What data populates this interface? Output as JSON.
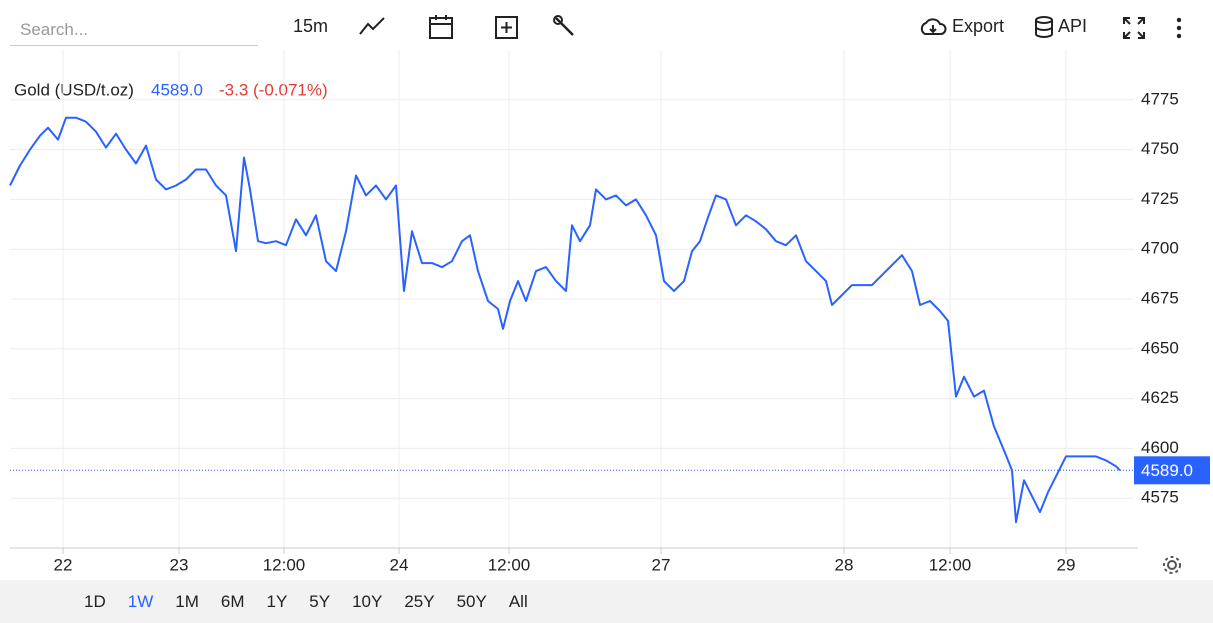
{
  "toolbar": {
    "search_placeholder": "Search...",
    "interval": "15m",
    "export": "Export",
    "api": "API"
  },
  "ranges": {
    "items": [
      "1D",
      "1W",
      "1M",
      "6M",
      "1Y",
      "5Y",
      "10Y",
      "25Y",
      "50Y",
      "All"
    ],
    "selected": "1W"
  },
  "chart_data": {
    "type": "line",
    "title": "Gold (USD/t.oz)",
    "current_price": {
      "value": 4589.0,
      "label": "4589.0"
    },
    "change": "-3.3 (-0.071%)",
    "series": [
      {
        "name": "Gold",
        "color": "#2962ff",
        "x": [
          0,
          10,
          20,
          30,
          38,
          48,
          56,
          66,
          76,
          86,
          96,
          106,
          116,
          126,
          136,
          146,
          156,
          166,
          176,
          186,
          196,
          206,
          216,
          226,
          234,
          240,
          248,
          256,
          266,
          276,
          286,
          296,
          306,
          316,
          326,
          336,
          346,
          356,
          366,
          376,
          386,
          394,
          402,
          412,
          422,
          432,
          442,
          452,
          460,
          468,
          478,
          488,
          493,
          500,
          508,
          516,
          526,
          536,
          546,
          556,
          562,
          570,
          580,
          586,
          596,
          606,
          616,
          626,
          636,
          646,
          654,
          664,
          674,
          682,
          690,
          698,
          706,
          716,
          726,
          736,
          746,
          756,
          766,
          776,
          786,
          796,
          806,
          816,
          822,
          832,
          842,
          852,
          862,
          872,
          882,
          892,
          902,
          910,
          920,
          930,
          938,
          946,
          954,
          964,
          974,
          984,
          994,
          1002,
          1006,
          1014,
          1022,
          1030,
          1038,
          1046,
          1056,
          1066,
          1076,
          1086,
          1096,
          1106,
          1110
        ],
        "values": [
          4732,
          4742,
          4750,
          4757,
          4761,
          4755,
          4766,
          4766,
          4764,
          4759,
          4751,
          4758,
          4750,
          4743,
          4752,
          4735,
          4730,
          4732,
          4735,
          4740,
          4740,
          4732,
          4727,
          4699,
          4746,
          4730,
          4704,
          4703,
          4704,
          4702,
          4715,
          4707,
          4717,
          4694,
          4689,
          4709,
          4737,
          4727,
          4732,
          4725,
          4732,
          4679,
          4709,
          4693,
          4693,
          4691,
          4694,
          4704,
          4707,
          4689,
          4674,
          4670,
          4660,
          4674,
          4684,
          4674,
          4689,
          4691,
          4684,
          4679,
          4712,
          4704,
          4712,
          4730,
          4725,
          4727,
          4722,
          4725,
          4717,
          4707,
          4684,
          4679,
          4684,
          4699,
          4704,
          4716,
          4727,
          4725,
          4712,
          4717,
          4714,
          4710,
          4704,
          4702,
          4707,
          4694,
          4689,
          4684,
          4672,
          4677,
          4682,
          4682,
          4682,
          4687,
          4692,
          4697,
          4689,
          4672,
          4674,
          4669,
          4664,
          4626,
          4636,
          4626,
          4629,
          4611,
          4599,
          4589,
          4563,
          4584,
          4576,
          4568,
          4578,
          4586,
          4596,
          4596,
          4596,
          4596,
          4594,
          4591,
          4589
        ]
      }
    ],
    "xlim": [
      0,
      1123
    ],
    "xticks": [
      {
        "value": 53,
        "label": "22"
      },
      {
        "value": 169,
        "label": "23"
      },
      {
        "value": 274,
        "label": "12:00"
      },
      {
        "value": 389,
        "label": "24"
      },
      {
        "value": 499,
        "label": "12:00"
      },
      {
        "value": 651,
        "label": "27"
      },
      {
        "value": 834,
        "label": "28"
      },
      {
        "value": 940,
        "label": "12:00"
      },
      {
        "value": 1056,
        "label": "29"
      }
    ],
    "ylim": [
      4550,
      4800
    ],
    "yticks": [
      4575,
      4600,
      4625,
      4650,
      4675,
      4700,
      4725,
      4750,
      4775
    ],
    "grid": true
  }
}
